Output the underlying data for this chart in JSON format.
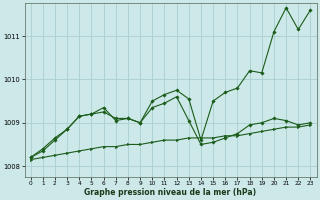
{
  "xlabel": "Graphe pression niveau de la mer (hPa)",
  "bg_color": "#cde8e8",
  "grid_color": "#aacfcf",
  "line_color": "#1a5c1a",
  "marker_color": "#1a5c1a",
  "xlim": [
    -0.5,
    23.5
  ],
  "ylim": [
    1007.75,
    1011.75
  ],
  "xticks": [
    0,
    1,
    2,
    3,
    4,
    5,
    6,
    7,
    8,
    9,
    10,
    11,
    12,
    13,
    14,
    15,
    16,
    17,
    18,
    19,
    20,
    21,
    22,
    23
  ],
  "yticks": [
    1008,
    1009,
    1010,
    1011
  ],
  "series1_x": [
    0,
    1,
    2,
    3,
    4,
    5,
    6,
    7,
    8,
    9,
    10,
    11,
    12,
    13,
    14,
    15,
    16,
    17,
    18,
    19,
    20,
    21,
    22,
    23
  ],
  "series1_y": [
    1008.2,
    1008.4,
    1008.65,
    1008.85,
    1009.15,
    1009.2,
    1009.35,
    1009.05,
    1009.1,
    1009.0,
    1009.5,
    1009.65,
    1009.75,
    1009.55,
    1008.6,
    1009.5,
    1009.7,
    1009.8,
    1010.2,
    1010.15,
    1011.1,
    1011.65,
    1011.15,
    1011.6
  ],
  "series2_x": [
    0,
    1,
    2,
    3,
    4,
    5,
    6,
    7,
    8,
    9,
    10,
    11,
    12,
    13,
    14,
    15,
    16,
    17,
    18,
    19,
    20,
    21,
    22,
    23
  ],
  "series2_y": [
    1008.2,
    1008.35,
    1008.6,
    1008.85,
    1009.15,
    1009.2,
    1009.25,
    1009.1,
    1009.1,
    1009.0,
    1009.35,
    1009.45,
    1009.6,
    1009.05,
    1008.5,
    1008.55,
    1008.65,
    1008.75,
    1008.95,
    1009.0,
    1009.1,
    1009.05,
    1008.95,
    1009.0
  ],
  "series3_x": [
    0,
    1,
    2,
    3,
    4,
    5,
    6,
    7,
    8,
    9,
    10,
    11,
    12,
    13,
    14,
    15,
    16,
    17,
    18,
    19,
    20,
    21,
    22,
    23
  ],
  "series3_y": [
    1008.15,
    1008.2,
    1008.25,
    1008.3,
    1008.35,
    1008.4,
    1008.45,
    1008.45,
    1008.5,
    1008.5,
    1008.55,
    1008.6,
    1008.6,
    1008.65,
    1008.65,
    1008.65,
    1008.7,
    1008.7,
    1008.75,
    1008.8,
    1008.85,
    1008.9,
    1008.9,
    1008.95
  ]
}
